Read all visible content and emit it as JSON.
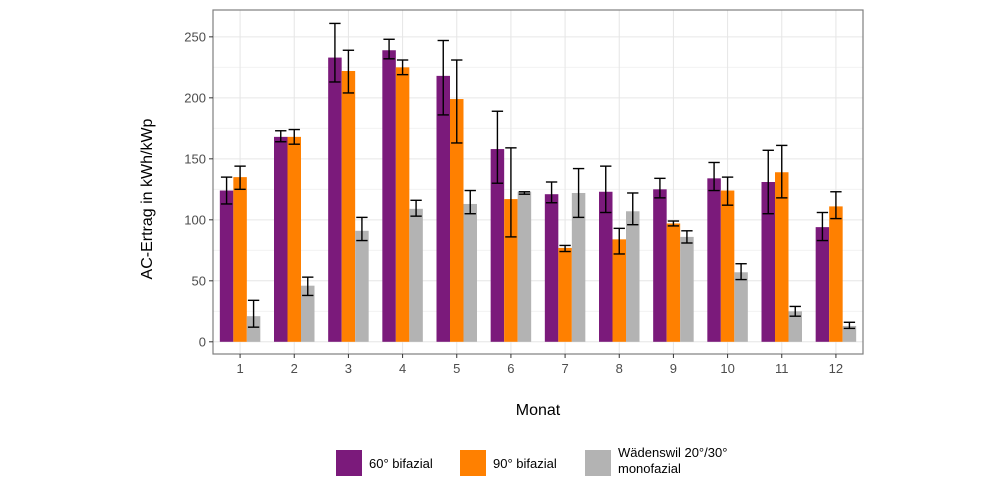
{
  "chart_data": {
    "type": "bar",
    "xlabel": "Monat",
    "ylabel": "AC-Ertrag in kWh/kWp",
    "ylim": [
      -10,
      272
    ],
    "yticks": [
      0,
      50,
      100,
      150,
      200,
      250
    ],
    "grid": true,
    "legend_position": "bottom",
    "categories": [
      "1",
      "2",
      "3",
      "4",
      "5",
      "6",
      "7",
      "8",
      "9",
      "10",
      "11",
      "12"
    ],
    "series": [
      {
        "name": "60° bifazial",
        "color": "#7b1a7b",
        "values": [
          124,
          168,
          233,
          239,
          218,
          158,
          121,
          123,
          125,
          134,
          131,
          94
        ],
        "err_low": [
          113,
          164,
          213,
          232,
          186,
          130,
          114,
          106,
          118,
          124,
          105,
          83
        ],
        "err_high": [
          135,
          173,
          261,
          248,
          247,
          189,
          131,
          144,
          134,
          147,
          157,
          106
        ]
      },
      {
        "name": "90° bifazial",
        "color": "#ff8000",
        "values": [
          135,
          168,
          222,
          225,
          199,
          117,
          77,
          84,
          97,
          124,
          139,
          111
        ],
        "err_low": [
          125,
          162,
          204,
          219,
          163,
          86,
          74,
          72,
          95,
          112,
          118,
          101
        ],
        "err_high": [
          144,
          174,
          239,
          231,
          231,
          159,
          79,
          93,
          99,
          135,
          161,
          123
        ]
      },
      {
        "name": "Wädenswil 20°/30° monofazial",
        "color": "#b3b3b3",
        "values": [
          21,
          46,
          91,
          109,
          113,
          123,
          122,
          107,
          86,
          57,
          25,
          13
        ],
        "err_low": [
          12,
          38,
          83,
          103,
          105,
          121,
          102,
          96,
          81,
          51,
          21,
          11
        ],
        "err_high": [
          34,
          53,
          102,
          116,
          124,
          123,
          142,
          122,
          91,
          64,
          29,
          16
        ]
      }
    ]
  }
}
